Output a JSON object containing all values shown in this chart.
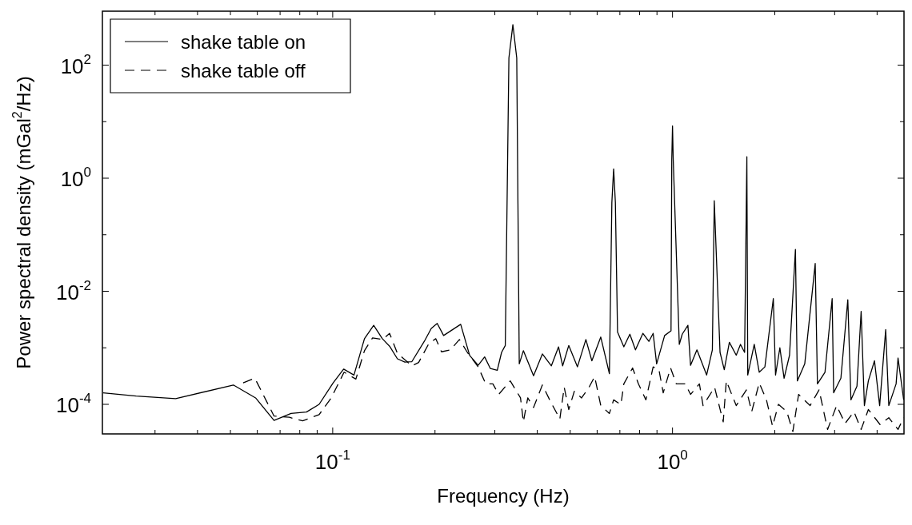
{
  "chart_data": {
    "type": "line",
    "xlabel": "Frequency (Hz)",
    "ylabel": "Power spectral density (mGal$^{2}$/Hz)",
    "log": "xy",
    "grid": false,
    "legend": "top left",
    "marker": "none",
    "xlim": [
      0.021,
      4.8
    ],
    "ylim": [
      3e-05,
      900
    ],
    "xticks": [
      {
        "value": 0.03,
        "label": null
      },
      {
        "value": 0.04,
        "label": null
      },
      {
        "value": 0.05,
        "label": null
      },
      {
        "value": 0.06,
        "label": null
      },
      {
        "value": 0.07,
        "label": null
      },
      {
        "value": 0.08,
        "label": null
      },
      {
        "value": 0.09,
        "label": null
      },
      {
        "value": 0.1,
        "label": "10$^{-1}$"
      },
      {
        "value": 0.2,
        "label": null
      },
      {
        "value": 0.3,
        "label": null
      },
      {
        "value": 0.4,
        "label": null
      },
      {
        "value": 0.5,
        "label": null
      },
      {
        "value": 0.6,
        "label": null
      },
      {
        "value": 0.7,
        "label": null
      },
      {
        "value": 0.8,
        "label": null
      },
      {
        "value": 0.9,
        "label": null
      },
      {
        "value": 1,
        "label": "10$^{0}$"
      },
      {
        "value": 2,
        "label": null
      },
      {
        "value": 3,
        "label": null
      },
      {
        "value": 4,
        "label": null
      }
    ],
    "yticks": [
      {
        "value": 0.0001,
        "label": "10$^{-4}$"
      },
      {
        "value": 0.001,
        "label": null
      },
      {
        "value": 0.01,
        "label": "10$^{-2}$"
      },
      {
        "value": 0.1,
        "label": null
      },
      {
        "value": 1,
        "label": "10$^{0}$"
      },
      {
        "value": 10,
        "label": null
      },
      {
        "value": 100,
        "label": "10$^{2}$"
      }
    ],
    "series": [
      {
        "name": "shake table on",
        "color": "#000000",
        "line_style": "solid",
        "x": [
          0.0211,
          0.0264,
          0.0345,
          0.051,
          0.0593,
          0.0672,
          0.0754,
          0.0837,
          0.0912,
          0.1003,
          0.1077,
          0.1155,
          0.124,
          0.132,
          0.14,
          0.147,
          0.155,
          0.163,
          0.171,
          0.186,
          0.195,
          0.203,
          0.212,
          0.238,
          0.253,
          0.268,
          0.28,
          0.291,
          0.305,
          0.314,
          0.322,
          0.33,
          0.339,
          0.348,
          0.354,
          0.364,
          0.39,
          0.414,
          0.44,
          0.462,
          0.475,
          0.495,
          0.525,
          0.556,
          0.579,
          0.615,
          0.652,
          0.663,
          0.671,
          0.679,
          0.689,
          0.719,
          0.749,
          0.778,
          0.818,
          0.852,
          0.877,
          0.898,
          0.948,
          0.99,
          0.995,
          1.0,
          1.005,
          1.047,
          1.068,
          1.11,
          1.13,
          1.18,
          1.26,
          1.31,
          1.327,
          1.38,
          1.42,
          1.47,
          1.54,
          1.585,
          1.63,
          1.655,
          1.665,
          1.74,
          1.8,
          1.87,
          1.98,
          2.01,
          2.07,
          2.13,
          2.21,
          2.3,
          2.33,
          2.45,
          2.63,
          2.67,
          2.81,
          2.95,
          2.98,
          3.13,
          3.28,
          3.35,
          3.49,
          3.59,
          3.67,
          3.77,
          3.93,
          4.07,
          4.24,
          4.33,
          4.55,
          4.61,
          4.79
        ],
        "values": [
          0.00016,
          0.00014,
          0.000126,
          0.00022,
          0.00013,
          5.2e-05,
          6.9e-05,
          7.3e-05,
          0.0001,
          0.00024,
          0.00042,
          0.00033,
          0.00145,
          0.0025,
          0.00145,
          0.00107,
          0.00064,
          0.00056,
          0.00057,
          0.0013,
          0.0022,
          0.0027,
          0.00165,
          0.0026,
          0.00073,
          0.00049,
          0.00069,
          0.00043,
          0.0004,
          0.00083,
          0.0011,
          134,
          520,
          134,
          0.00052,
          0.00089,
          0.00032,
          0.00078,
          0.00048,
          0.00104,
          0.00048,
          0.0011,
          0.00046,
          0.0014,
          0.00059,
          0.00155,
          0.00035,
          0.37,
          1.46,
          0.37,
          0.0019,
          0.00104,
          0.00174,
          0.00092,
          0.0018,
          0.0013,
          0.0018,
          0.00052,
          0.00165,
          0.002,
          2.1,
          8.4,
          2.1,
          0.00115,
          0.00174,
          0.0025,
          0.00049,
          0.00092,
          0.00033,
          0.00092,
          0.4,
          0.00083,
          0.00041,
          0.00125,
          0.00074,
          0.00115,
          0.00083,
          2.4,
          0.00033,
          0.00115,
          0.00037,
          0.00046,
          0.0074,
          0.00033,
          0.001,
          0.00029,
          0.00074,
          0.055,
          0.00026,
          0.00052,
          0.031,
          0.00023,
          0.00037,
          0.0074,
          0.00016,
          0.00029,
          0.0071,
          0.00012,
          0.00021,
          0.0044,
          9.5e-05,
          0.00026,
          0.00059,
          9.5e-05,
          0.0021,
          9.5e-05,
          0.00023,
          0.00066,
          0.00012
        ]
      },
      {
        "name": "shake table off",
        "color": "#000000",
        "line_style": "dashed",
        "x": [
          0.0545,
          0.059,
          0.0672,
          0.0745,
          0.0816,
          0.0912,
          0.099,
          0.108,
          0.117,
          0.124,
          0.131,
          0.14,
          0.147,
          0.155,
          0.171,
          0.179,
          0.192,
          0.201,
          0.209,
          0.222,
          0.236,
          0.249,
          0.268,
          0.282,
          0.296,
          0.308,
          0.333,
          0.357,
          0.364,
          0.375,
          0.39,
          0.414,
          0.435,
          0.466,
          0.48,
          0.495,
          0.514,
          0.54,
          0.568,
          0.59,
          0.615,
          0.652,
          0.671,
          0.705,
          0.719,
          0.763,
          0.794,
          0.835,
          0.877,
          0.912,
          0.939,
          0.987,
          1.026,
          1.09,
          1.13,
          1.2,
          1.23,
          1.33,
          1.41,
          1.44,
          1.54,
          1.65,
          1.71,
          1.8,
          1.89,
          1.97,
          2.05,
          2.17,
          2.26,
          2.35,
          2.54,
          2.7,
          2.86,
          3.04,
          3.22,
          3.42,
          3.59,
          3.77,
          4.08,
          4.33,
          4.61,
          4.79
        ],
        "values": [
          0.00024,
          0.00029,
          6.2e-05,
          5.9e-05,
          5.1e-05,
          6.6e-05,
          0.00013,
          0.00037,
          0.00028,
          0.00089,
          0.0015,
          0.0014,
          0.0018,
          0.0008,
          0.00048,
          0.00055,
          0.0012,
          0.00145,
          0.00085,
          0.00092,
          0.0014,
          0.00083,
          0.00046,
          0.00023,
          0.00023,
          0.00015,
          0.00026,
          0.00013,
          4.9e-05,
          0.00013,
          8.8e-05,
          0.00022,
          0.00012,
          5.5e-05,
          0.0002,
          8.1e-05,
          0.00017,
          0.00013,
          0.0002,
          0.00031,
          9.5e-05,
          6.9e-05,
          0.00012,
          9.9e-05,
          0.00023,
          0.00044,
          0.00023,
          0.00012,
          0.00046,
          0.00041,
          0.00016,
          0.00044,
          0.00023,
          0.00023,
          0.00015,
          0.00023,
          9.5e-05,
          0.0002,
          4.9e-05,
          0.00026,
          9.5e-05,
          0.00018,
          7.4e-05,
          0.00024,
          0.00012,
          4.1e-05,
          0.0001,
          7.4e-05,
          3.3e-05,
          0.00015,
          9.5e-05,
          0.00018,
          3.6e-05,
          9.5e-05,
          4.6e-05,
          7.4e-05,
          3.6e-05,
          8.1e-05,
          4.4e-05,
          5.8e-05,
          3.6e-05,
          5.8e-05
        ]
      }
    ]
  }
}
